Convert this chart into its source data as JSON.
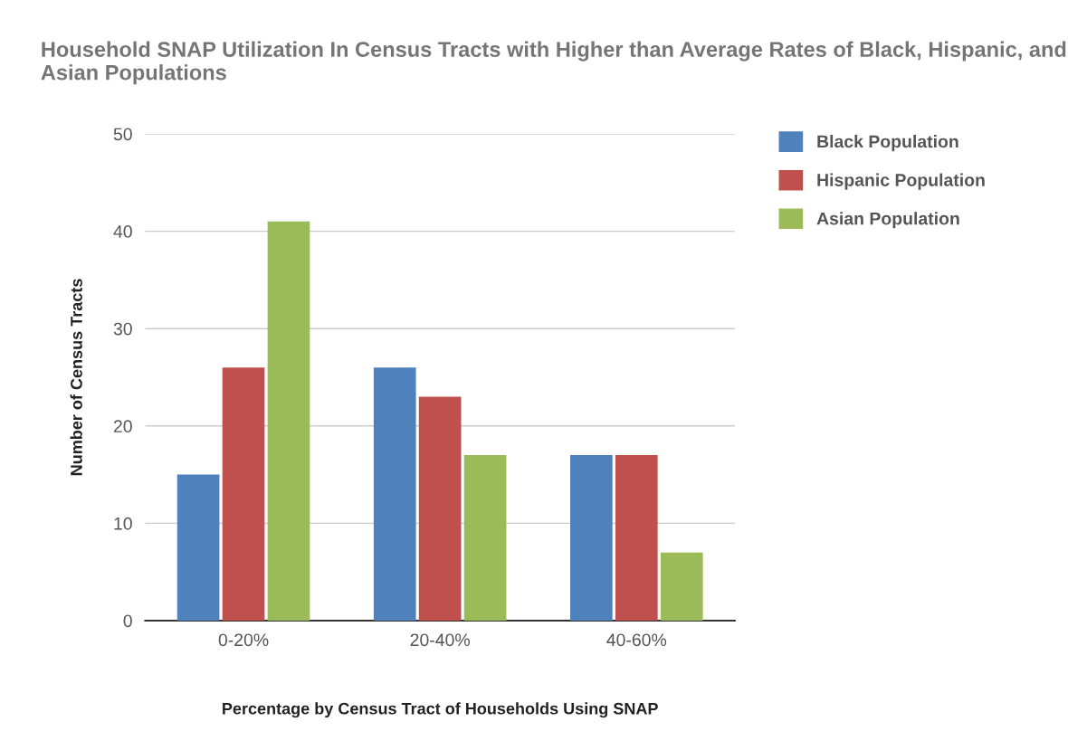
{
  "chart_data": {
    "type": "bar",
    "title": "Household SNAP Utilization In Census Tracts with Higher than Average Rates of Black, Hispanic, and Asian Populations",
    "xlabel": "Percentage by Census Tract of Households Using SNAP",
    "ylabel": "Number of Census Tracts",
    "categories": [
      "0-20%",
      "20-40%",
      "40-60%"
    ],
    "series": [
      {
        "name": "Black Population",
        "color": "#4f81bd",
        "values": [
          15,
          26,
          17
        ]
      },
      {
        "name": "Hispanic Population",
        "color": "#c0504d",
        "values": [
          26,
          23,
          17
        ]
      },
      {
        "name": "Asian Population",
        "color": "#9bbb59",
        "values": [
          41,
          17,
          7
        ]
      }
    ],
    "ylim": [
      0,
      50
    ],
    "yticks": [
      0,
      10,
      20,
      30,
      40,
      50
    ],
    "grid": "y",
    "legend": "top right"
  }
}
